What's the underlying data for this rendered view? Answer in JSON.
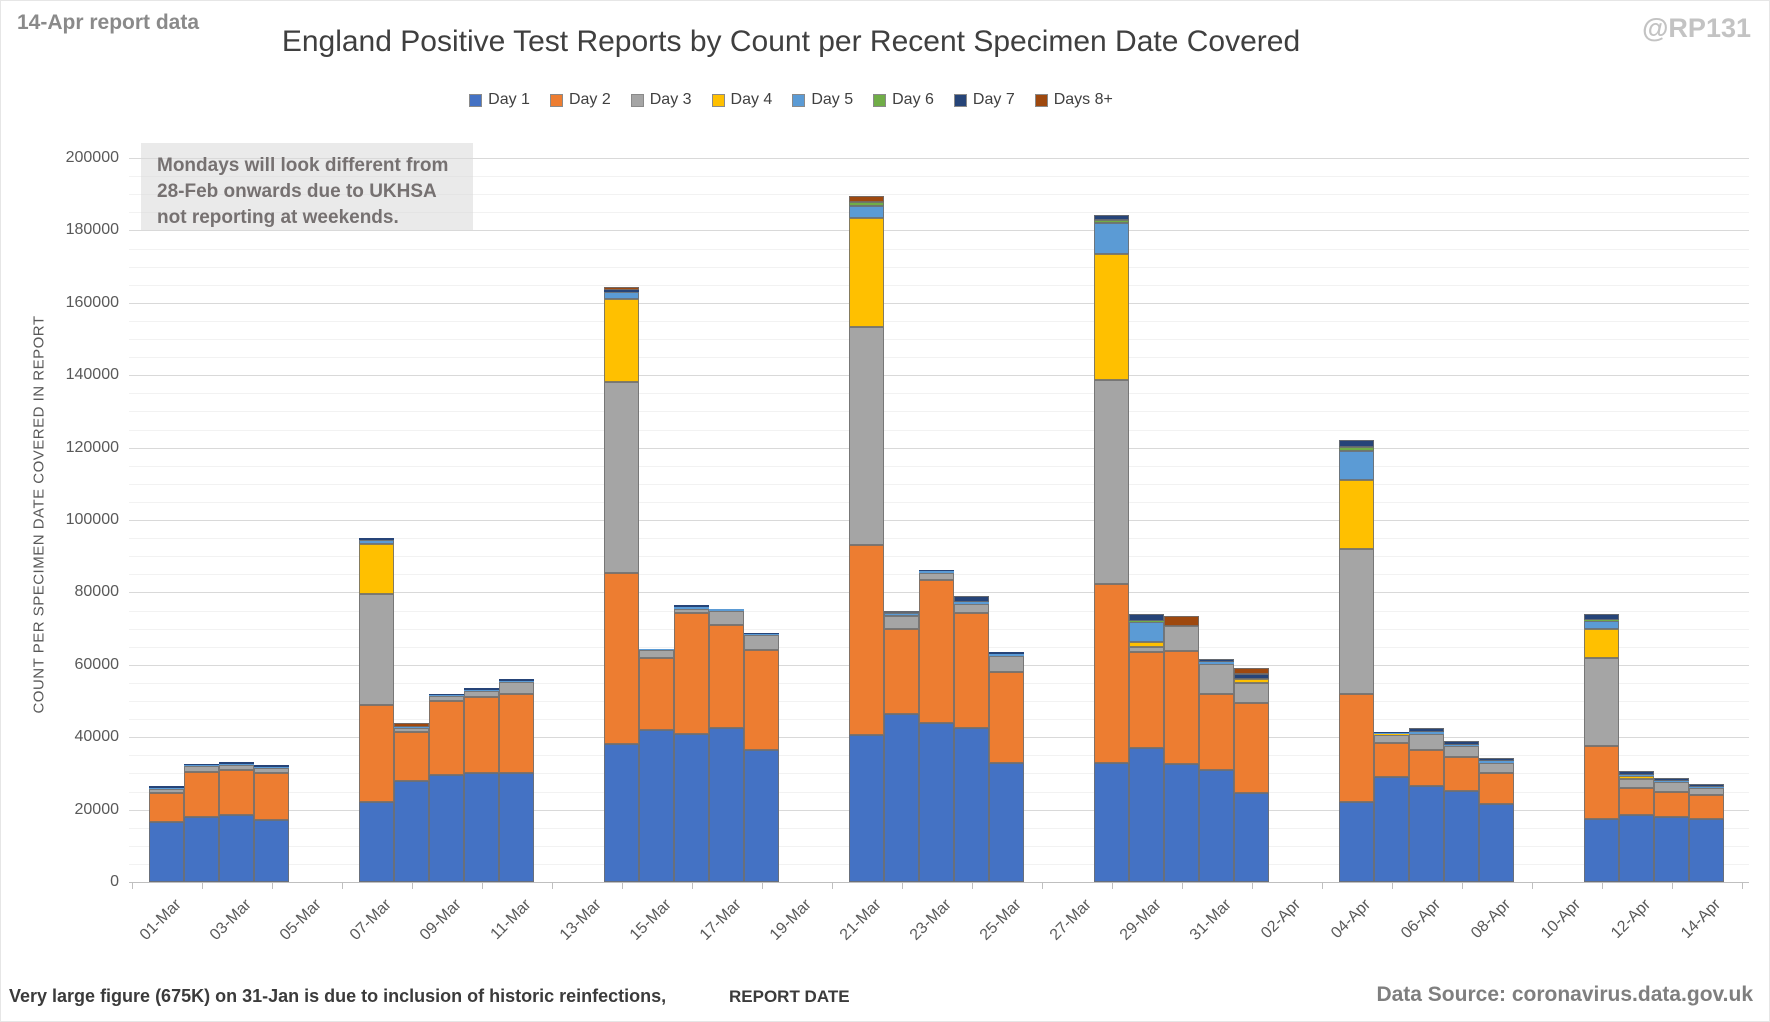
{
  "header": {
    "report_note": "14-Apr report data",
    "title": "England Positive Test Reports by Count per Recent Specimen Date Covered",
    "watermark": "@RP131"
  },
  "legend": {
    "items": [
      {
        "label": "Day 1",
        "color": "#4472C4"
      },
      {
        "label": "Day 2",
        "color": "#ED7D31"
      },
      {
        "label": "Day 3",
        "color": "#A5A5A5"
      },
      {
        "label": "Day 4",
        "color": "#FFC000"
      },
      {
        "label": "Day 5",
        "color": "#5B9BD5"
      },
      {
        "label": "Day 6",
        "color": "#70AD47"
      },
      {
        "label": "Day 7",
        "color": "#264478"
      },
      {
        "label": "Days 8+",
        "color": "#9E480E"
      }
    ]
  },
  "annotation": {
    "line1": "Mondays will look different from",
    "line2": "28-Feb onwards due to UKHSA",
    "line3": "not reporting at weekends."
  },
  "footer": {
    "note": "Very large figure (675K) on 31-Jan is due to inclusion of historic reinfections,",
    "x_axis_title": "REPORT DATE",
    "data_source": "Data Source: coronavirus.data.gov.uk"
  },
  "chart_data": {
    "type": "bar",
    "stacked": true,
    "title": "England Positive Test Reports by Count per Recent Specimen Date Covered",
    "xlabel": "REPORT DATE",
    "ylabel": "COUNT PER SPECIMEN DATE COVERED IN REPORT",
    "ylim": [
      0,
      200000
    ],
    "y_major_step": 20000,
    "y_minor_step": 5000,
    "grid": true,
    "legend_position": "top",
    "series_names": [
      "Day 1",
      "Day 2",
      "Day 3",
      "Day 4",
      "Day 5",
      "Day 6",
      "Day 7",
      "Days 8+"
    ],
    "series_colors": [
      "#4472C4",
      "#ED7D31",
      "#A5A5A5",
      "#FFC000",
      "#5B9BD5",
      "#70AD47",
      "#264478",
      "#9E480E"
    ],
    "categories": [
      "01-Mar",
      "02-Mar",
      "03-Mar",
      "04-Mar",
      "05-Mar",
      "06-Mar",
      "07-Mar",
      "08-Mar",
      "09-Mar",
      "10-Mar",
      "11-Mar",
      "12-Mar",
      "13-Mar",
      "14-Mar",
      "15-Mar",
      "16-Mar",
      "17-Mar",
      "18-Mar",
      "19-Mar",
      "20-Mar",
      "21-Mar",
      "22-Mar",
      "23-Mar",
      "24-Mar",
      "25-Mar",
      "26-Mar",
      "27-Mar",
      "28-Mar",
      "29-Mar",
      "30-Mar",
      "31-Mar",
      "01-Apr",
      "02-Apr",
      "03-Apr",
      "04-Apr",
      "05-Apr",
      "06-Apr",
      "07-Apr",
      "08-Apr",
      "09-Apr",
      "10-Apr",
      "11-Apr",
      "12-Apr",
      "13-Apr",
      "14-Apr"
    ],
    "x_tick_label_slots": [
      0,
      2,
      4,
      6,
      8,
      10,
      12,
      14,
      16,
      18,
      20,
      22,
      24,
      26,
      28,
      30,
      32,
      34,
      36,
      38,
      40,
      42,
      44
    ],
    "bars": [
      {
        "date": "01-Mar",
        "slot": 0,
        "values": [
          16500,
          8000,
          1300,
          0,
          200,
          0,
          500,
          0
        ]
      },
      {
        "date": "02-Mar",
        "slot": 1,
        "values": [
          18000,
          12500,
          1500,
          0,
          200,
          0,
          500,
          0
        ]
      },
      {
        "date": "03-Mar",
        "slot": 2,
        "values": [
          18500,
          12500,
          1400,
          0,
          300,
          0,
          500,
          0
        ]
      },
      {
        "date": "04-Mar",
        "slot": 3,
        "values": [
          17000,
          13000,
          1500,
          0,
          200,
          0,
          500,
          0
        ]
      },
      {
        "date": "07-Mar",
        "slot": 6,
        "values": [
          22000,
          27000,
          30500,
          14000,
          1000,
          0,
          500,
          0
        ]
      },
      {
        "date": "08-Mar",
        "slot": 7,
        "values": [
          28000,
          13500,
          1000,
          0,
          300,
          0,
          0,
          1200
        ]
      },
      {
        "date": "09-Mar",
        "slot": 8,
        "values": [
          29500,
          20500,
          1300,
          0,
          300,
          0,
          400,
          0
        ]
      },
      {
        "date": "10-Mar",
        "slot": 9,
        "values": [
          30000,
          21000,
          1800,
          0,
          300,
          0,
          400,
          0
        ]
      },
      {
        "date": "11-Mar",
        "slot": 10,
        "values": [
          30000,
          22000,
          3300,
          0,
          300,
          0,
          400,
          0
        ]
      },
      {
        "date": "14-Mar",
        "slot": 13,
        "values": [
          38000,
          47500,
          52500,
          23000,
          2000,
          0,
          600,
          900
        ]
      },
      {
        "date": "15-Mar",
        "slot": 14,
        "values": [
          42000,
          20000,
          2000,
          0,
          300,
          0,
          200,
          0
        ]
      },
      {
        "date": "16-Mar",
        "slot": 15,
        "values": [
          41000,
          33200,
          1300,
          0,
          400,
          0,
          500,
          0
        ]
      },
      {
        "date": "17-Mar",
        "slot": 16,
        "values": [
          42500,
          28500,
          4000,
          0,
          300,
          0,
          200,
          0
        ]
      },
      {
        "date": "18-Mar",
        "slot": 17,
        "values": [
          36500,
          27700,
          4000,
          0,
          300,
          0,
          200,
          0
        ]
      },
      {
        "date": "21-Mar",
        "slot": 20,
        "values": [
          40500,
          52500,
          60300,
          30000,
          3400,
          1100,
          0,
          1700
        ]
      },
      {
        "date": "22-Mar",
        "slot": 21,
        "values": [
          46500,
          23500,
          3500,
          0,
          800,
          0,
          700,
          0
        ]
      },
      {
        "date": "23-Mar",
        "slot": 22,
        "values": [
          43800,
          39500,
          2200,
          0,
          300,
          0,
          400,
          0
        ]
      },
      {
        "date": "24-Mar",
        "slot": 23,
        "values": [
          42500,
          31700,
          2700,
          0,
          500,
          0,
          1500,
          0
        ]
      },
      {
        "date": "25-Mar",
        "slot": 24,
        "values": [
          33000,
          25000,
          4500,
          0,
          500,
          0,
          600,
          0
        ]
      },
      {
        "date": "28-Mar",
        "slot": 27,
        "values": [
          33000,
          49200,
          56400,
          35000,
          8400,
          900,
          1300,
          0
        ]
      },
      {
        "date": "29-Mar",
        "slot": 28,
        "values": [
          37000,
          26400,
          1500,
          1400,
          5500,
          300,
          2000,
          0
        ]
      },
      {
        "date": "30-Mar",
        "slot": 29,
        "values": [
          32500,
          31400,
          6900,
          0,
          0,
          0,
          0,
          2800
        ]
      },
      {
        "date": "31-Mar",
        "slot": 30,
        "values": [
          31000,
          21000,
          8200,
          0,
          500,
          0,
          1000,
          0
        ]
      },
      {
        "date": "01-Apr",
        "slot": 31,
        "values": [
          24500,
          25000,
          5500,
          1100,
          0,
          0,
          1400,
          1700
        ]
      },
      {
        "date": "04-Apr",
        "slot": 34,
        "values": [
          22000,
          30000,
          40000,
          19000,
          8200,
          1100,
          1700,
          0
        ]
      },
      {
        "date": "05-Apr",
        "slot": 35,
        "values": [
          29000,
          9500,
          2000,
          300,
          300,
          0,
          400,
          0
        ]
      },
      {
        "date": "06-Apr",
        "slot": 36,
        "values": [
          26500,
          10000,
          4500,
          0,
          500,
          0,
          1000,
          0
        ]
      },
      {
        "date": "07-Apr",
        "slot": 37,
        "values": [
          25000,
          9500,
          3000,
          0,
          400,
          0,
          1100,
          0
        ]
      },
      {
        "date": "08-Apr",
        "slot": 38,
        "values": [
          21500,
          8500,
          3000,
          0,
          300,
          0,
          900,
          0
        ]
      },
      {
        "date": "11-Apr",
        "slot": 41,
        "values": [
          17500,
          20000,
          24500,
          8000,
          2200,
          300,
          1500,
          0
        ]
      },
      {
        "date": "12-Apr",
        "slot": 42,
        "values": [
          18500,
          7500,
          2500,
          700,
          400,
          0,
          1000,
          200
        ]
      },
      {
        "date": "13-Apr",
        "slot": 43,
        "values": [
          18000,
          7000,
          2500,
          0,
          300,
          0,
          900,
          0
        ]
      },
      {
        "date": "14-Apr",
        "slot": 44,
        "values": [
          17500,
          6500,
          2000,
          0,
          300,
          0,
          800,
          0
        ]
      }
    ]
  }
}
